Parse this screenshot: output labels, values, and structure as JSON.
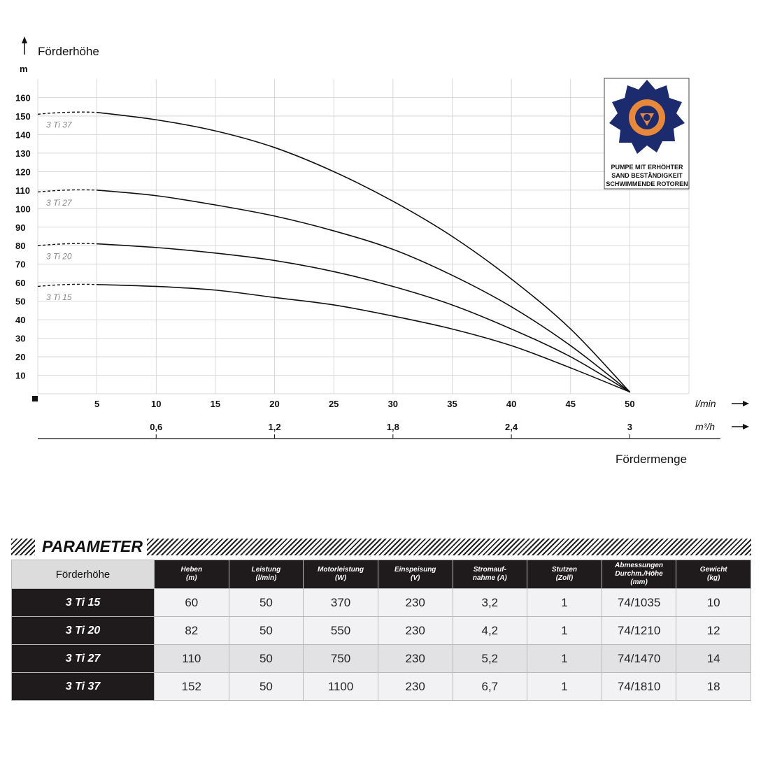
{
  "chart_data": {
    "type": "line",
    "ylabel": "Förderhöhe",
    "yunit": "m",
    "xlabel": "Fördermenge",
    "x_unit_primary": "l/min",
    "x_unit_secondary": "m³/h",
    "ylim": [
      0,
      170
    ],
    "xlim": [
      0,
      55
    ],
    "yticks": [
      10,
      20,
      30,
      40,
      50,
      60,
      70,
      80,
      90,
      100,
      110,
      120,
      130,
      140,
      150,
      160
    ],
    "xticks_primary": [
      5,
      10,
      15,
      20,
      25,
      30,
      35,
      40,
      45,
      50
    ],
    "xticks_secondary": [
      {
        "value": 10,
        "label": "0,6"
      },
      {
        "value": 20,
        "label": "1,2"
      },
      {
        "value": 30,
        "label": "1,8"
      },
      {
        "value": 40,
        "label": "2,4"
      },
      {
        "value": 50,
        "label": "3"
      }
    ],
    "grid": true,
    "series": [
      {
        "name": "3 Ti 37",
        "x": [
          5,
          10,
          15,
          20,
          25,
          30,
          35,
          40,
          45,
          50
        ],
        "values": [
          152,
          148,
          142,
          133,
          120,
          104,
          85,
          62,
          35,
          1
        ]
      },
      {
        "name": "3 Ti 27",
        "x": [
          5,
          10,
          15,
          20,
          25,
          30,
          35,
          40,
          45,
          50
        ],
        "values": [
          110,
          107,
          102,
          96,
          88,
          78,
          64,
          47,
          26,
          1
        ]
      },
      {
        "name": "3 Ti 20",
        "x": [
          5,
          10,
          15,
          20,
          25,
          30,
          35,
          40,
          45,
          50
        ],
        "values": [
          81,
          79,
          76,
          72,
          66,
          58,
          48,
          35,
          20,
          1
        ]
      },
      {
        "name": "3 Ti 15",
        "x": [
          5,
          10,
          15,
          20,
          25,
          30,
          35,
          40,
          45,
          50
        ],
        "values": [
          59,
          58,
          56,
          52,
          48,
          42,
          35,
          26,
          14,
          1
        ]
      }
    ],
    "series_colors": {
      "curve": "#111111",
      "label": "#8a8a8a"
    }
  },
  "badge": {
    "lines": [
      "PUMPE MIT ERHÖHTER",
      "SAND BESTÄNDIGKEIT",
      "SCHWIMMENDE ROTOREN"
    ],
    "icon": "impeller-icon",
    "colors": {
      "rotor": "#1c2a6e",
      "ring": "#e8883a"
    }
  },
  "table": {
    "title": "PARAMETER",
    "corner": "Förderhöhe",
    "columns": [
      {
        "l1": "Heben",
        "l2": "(m)",
        "l3": ""
      },
      {
        "l1": "Leistung",
        "l2": "(l/min)",
        "l3": ""
      },
      {
        "l1": "Motorleistung",
        "l2": "(W)",
        "l3": ""
      },
      {
        "l1": "Einspeisung",
        "l2": "(V)",
        "l3": ""
      },
      {
        "l1": "Stromauf-",
        "l2": "nahme (A)",
        "l3": ""
      },
      {
        "l1": "Stutzen",
        "l2": "(Zoll)",
        "l3": ""
      },
      {
        "l1": "Abmessungen",
        "l2": "Durchm./Höhe",
        "l3": "(mm)"
      },
      {
        "l1": "Gewicht",
        "l2": "(kg)",
        "l3": ""
      }
    ],
    "rows": [
      {
        "name": "3 Ti 15",
        "cells": [
          "60",
          "50",
          "370",
          "230",
          "3,2",
          "1",
          "74/1035",
          "10"
        ]
      },
      {
        "name": "3 Ti 20",
        "cells": [
          "82",
          "50",
          "550",
          "230",
          "4,2",
          "1",
          "74/1210",
          "12"
        ]
      },
      {
        "name": "3 Ti 27",
        "cells": [
          "110",
          "50",
          "750",
          "230",
          "5,2",
          "1",
          "74/1470",
          "14"
        ]
      },
      {
        "name": "3 Ti 37",
        "cells": [
          "152",
          "50",
          "1100",
          "230",
          "6,7",
          "1",
          "74/1810",
          "18"
        ]
      }
    ]
  }
}
